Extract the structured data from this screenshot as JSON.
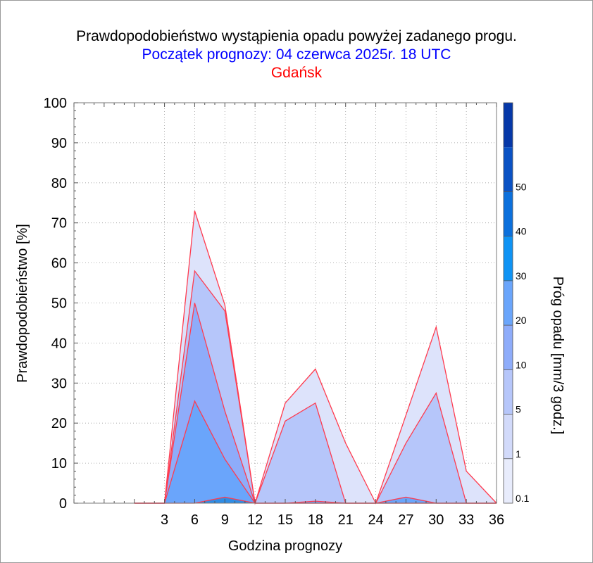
{
  "title": "Prawdopodobieństwo wystąpienia opadu powyżej zadanego progu.",
  "subtitle": "Początek prognozy: 04 czerwca 2025r. 18 UTC",
  "location": "Gdańsk",
  "colors": {
    "title": "#000000",
    "subtitle": "#0000ff",
    "location": "#ff0000",
    "series_line": "#ff3b4f",
    "grid": "#9a9a9a"
  },
  "chart_data": {
    "type": "area",
    "xlabel": "Godzina prognozy",
    "ylabel": "Prawdopodobieństwo [%]",
    "colorbar_label": "Próg opadu [mm/3 godz.]",
    "x": [
      0,
      3,
      6,
      9,
      12,
      15,
      18,
      21,
      24,
      27,
      30,
      33,
      36
    ],
    "x_ticks": [
      3,
      6,
      9,
      12,
      15,
      18,
      21,
      24,
      27,
      30,
      33,
      36
    ],
    "y_ticks": [
      0,
      10,
      20,
      30,
      40,
      50,
      60,
      70,
      80,
      90,
      100
    ],
    "xlim": [
      -6,
      36
    ],
    "ylim": [
      0,
      100
    ],
    "grid": true,
    "series": [
      {
        "threshold": "0.1",
        "color": "#dde3fb",
        "values": [
          0,
          0,
          73,
          49.5,
          0,
          25,
          33.5,
          15,
          0,
          22,
          44,
          8,
          0
        ]
      },
      {
        "threshold": "1",
        "color": "#b6c6fa",
        "values": [
          0,
          0,
          58,
          48,
          0,
          20.5,
          25,
          0,
          0,
          15,
          27.5,
          0,
          0
        ]
      },
      {
        "threshold": "5",
        "color": "#8eacfa",
        "values": [
          0,
          0,
          50,
          23,
          0,
          0,
          0,
          0,
          0,
          0,
          0,
          0,
          0
        ]
      },
      {
        "threshold": "10",
        "color": "#6aa5fb",
        "values": [
          0,
          0,
          25.5,
          11,
          0,
          0,
          0.5,
          0,
          0,
          1.5,
          0,
          0,
          0
        ]
      },
      {
        "threshold": "20",
        "color": "#2f8de5",
        "values": [
          0,
          0,
          0,
          1.5,
          0,
          0,
          0,
          0,
          0,
          0,
          0,
          0,
          0
        ]
      }
    ],
    "colorbar": {
      "labels": [
        "0.1",
        "1",
        "5",
        "10",
        "20",
        "30",
        "40",
        "50"
      ],
      "colors": [
        "#e8ecfc",
        "#d2dafa",
        "#b6c6fa",
        "#8eacfa",
        "#6aa5fb",
        "#0f93f4",
        "#0c70dc",
        "#0a52c4",
        "#0638a8"
      ]
    }
  }
}
